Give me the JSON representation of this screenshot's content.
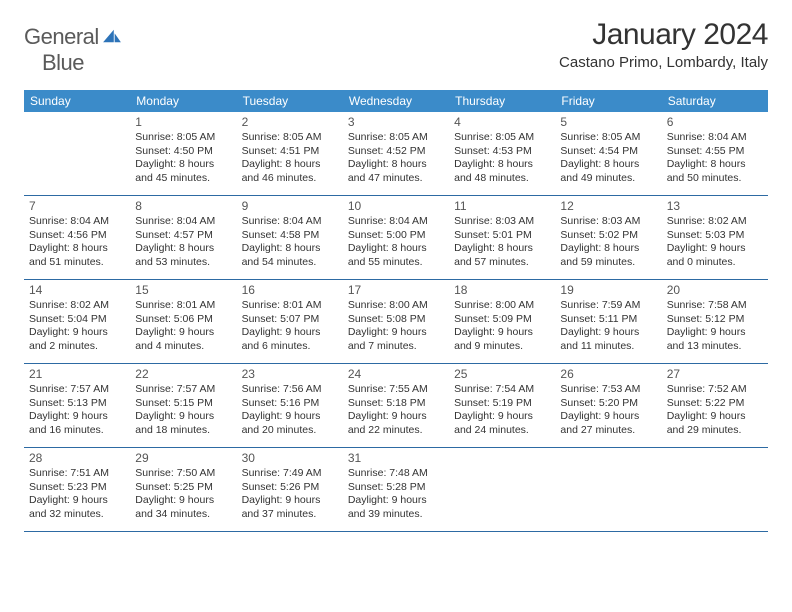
{
  "logo": {
    "word1": "General",
    "word2": "Blue"
  },
  "title": "January 2024",
  "location": "Castano Primo, Lombardy, Italy",
  "colors": {
    "header_bg": "#3b8bc9",
    "header_text": "#ffffff",
    "week_border": "#2d6aa3",
    "logo_gray": "#5a5a5a",
    "logo_blue": "#2d73b8"
  },
  "dayNames": [
    "Sunday",
    "Monday",
    "Tuesday",
    "Wednesday",
    "Thursday",
    "Friday",
    "Saturday"
  ],
  "weeks": [
    [
      null,
      {
        "d": "1",
        "sr": "Sunrise: 8:05 AM",
        "ss": "Sunset: 4:50 PM",
        "dl1": "Daylight: 8 hours",
        "dl2": "and 45 minutes."
      },
      {
        "d": "2",
        "sr": "Sunrise: 8:05 AM",
        "ss": "Sunset: 4:51 PM",
        "dl1": "Daylight: 8 hours",
        "dl2": "and 46 minutes."
      },
      {
        "d": "3",
        "sr": "Sunrise: 8:05 AM",
        "ss": "Sunset: 4:52 PM",
        "dl1": "Daylight: 8 hours",
        "dl2": "and 47 minutes."
      },
      {
        "d": "4",
        "sr": "Sunrise: 8:05 AM",
        "ss": "Sunset: 4:53 PM",
        "dl1": "Daylight: 8 hours",
        "dl2": "and 48 minutes."
      },
      {
        "d": "5",
        "sr": "Sunrise: 8:05 AM",
        "ss": "Sunset: 4:54 PM",
        "dl1": "Daylight: 8 hours",
        "dl2": "and 49 minutes."
      },
      {
        "d": "6",
        "sr": "Sunrise: 8:04 AM",
        "ss": "Sunset: 4:55 PM",
        "dl1": "Daylight: 8 hours",
        "dl2": "and 50 minutes."
      }
    ],
    [
      {
        "d": "7",
        "sr": "Sunrise: 8:04 AM",
        "ss": "Sunset: 4:56 PM",
        "dl1": "Daylight: 8 hours",
        "dl2": "and 51 minutes."
      },
      {
        "d": "8",
        "sr": "Sunrise: 8:04 AM",
        "ss": "Sunset: 4:57 PM",
        "dl1": "Daylight: 8 hours",
        "dl2": "and 53 minutes."
      },
      {
        "d": "9",
        "sr": "Sunrise: 8:04 AM",
        "ss": "Sunset: 4:58 PM",
        "dl1": "Daylight: 8 hours",
        "dl2": "and 54 minutes."
      },
      {
        "d": "10",
        "sr": "Sunrise: 8:04 AM",
        "ss": "Sunset: 5:00 PM",
        "dl1": "Daylight: 8 hours",
        "dl2": "and 55 minutes."
      },
      {
        "d": "11",
        "sr": "Sunrise: 8:03 AM",
        "ss": "Sunset: 5:01 PM",
        "dl1": "Daylight: 8 hours",
        "dl2": "and 57 minutes."
      },
      {
        "d": "12",
        "sr": "Sunrise: 8:03 AM",
        "ss": "Sunset: 5:02 PM",
        "dl1": "Daylight: 8 hours",
        "dl2": "and 59 minutes."
      },
      {
        "d": "13",
        "sr": "Sunrise: 8:02 AM",
        "ss": "Sunset: 5:03 PM",
        "dl1": "Daylight: 9 hours",
        "dl2": "and 0 minutes."
      }
    ],
    [
      {
        "d": "14",
        "sr": "Sunrise: 8:02 AM",
        "ss": "Sunset: 5:04 PM",
        "dl1": "Daylight: 9 hours",
        "dl2": "and 2 minutes."
      },
      {
        "d": "15",
        "sr": "Sunrise: 8:01 AM",
        "ss": "Sunset: 5:06 PM",
        "dl1": "Daylight: 9 hours",
        "dl2": "and 4 minutes."
      },
      {
        "d": "16",
        "sr": "Sunrise: 8:01 AM",
        "ss": "Sunset: 5:07 PM",
        "dl1": "Daylight: 9 hours",
        "dl2": "and 6 minutes."
      },
      {
        "d": "17",
        "sr": "Sunrise: 8:00 AM",
        "ss": "Sunset: 5:08 PM",
        "dl1": "Daylight: 9 hours",
        "dl2": "and 7 minutes."
      },
      {
        "d": "18",
        "sr": "Sunrise: 8:00 AM",
        "ss": "Sunset: 5:09 PM",
        "dl1": "Daylight: 9 hours",
        "dl2": "and 9 minutes."
      },
      {
        "d": "19",
        "sr": "Sunrise: 7:59 AM",
        "ss": "Sunset: 5:11 PM",
        "dl1": "Daylight: 9 hours",
        "dl2": "and 11 minutes."
      },
      {
        "d": "20",
        "sr": "Sunrise: 7:58 AM",
        "ss": "Sunset: 5:12 PM",
        "dl1": "Daylight: 9 hours",
        "dl2": "and 13 minutes."
      }
    ],
    [
      {
        "d": "21",
        "sr": "Sunrise: 7:57 AM",
        "ss": "Sunset: 5:13 PM",
        "dl1": "Daylight: 9 hours",
        "dl2": "and 16 minutes."
      },
      {
        "d": "22",
        "sr": "Sunrise: 7:57 AM",
        "ss": "Sunset: 5:15 PM",
        "dl1": "Daylight: 9 hours",
        "dl2": "and 18 minutes."
      },
      {
        "d": "23",
        "sr": "Sunrise: 7:56 AM",
        "ss": "Sunset: 5:16 PM",
        "dl1": "Daylight: 9 hours",
        "dl2": "and 20 minutes."
      },
      {
        "d": "24",
        "sr": "Sunrise: 7:55 AM",
        "ss": "Sunset: 5:18 PM",
        "dl1": "Daylight: 9 hours",
        "dl2": "and 22 minutes."
      },
      {
        "d": "25",
        "sr": "Sunrise: 7:54 AM",
        "ss": "Sunset: 5:19 PM",
        "dl1": "Daylight: 9 hours",
        "dl2": "and 24 minutes."
      },
      {
        "d": "26",
        "sr": "Sunrise: 7:53 AM",
        "ss": "Sunset: 5:20 PM",
        "dl1": "Daylight: 9 hours",
        "dl2": "and 27 minutes."
      },
      {
        "d": "27",
        "sr": "Sunrise: 7:52 AM",
        "ss": "Sunset: 5:22 PM",
        "dl1": "Daylight: 9 hours",
        "dl2": "and 29 minutes."
      }
    ],
    [
      {
        "d": "28",
        "sr": "Sunrise: 7:51 AM",
        "ss": "Sunset: 5:23 PM",
        "dl1": "Daylight: 9 hours",
        "dl2": "and 32 minutes."
      },
      {
        "d": "29",
        "sr": "Sunrise: 7:50 AM",
        "ss": "Sunset: 5:25 PM",
        "dl1": "Daylight: 9 hours",
        "dl2": "and 34 minutes."
      },
      {
        "d": "30",
        "sr": "Sunrise: 7:49 AM",
        "ss": "Sunset: 5:26 PM",
        "dl1": "Daylight: 9 hours",
        "dl2": "and 37 minutes."
      },
      {
        "d": "31",
        "sr": "Sunrise: 7:48 AM",
        "ss": "Sunset: 5:28 PM",
        "dl1": "Daylight: 9 hours",
        "dl2": "and 39 minutes."
      },
      null,
      null,
      null
    ]
  ]
}
